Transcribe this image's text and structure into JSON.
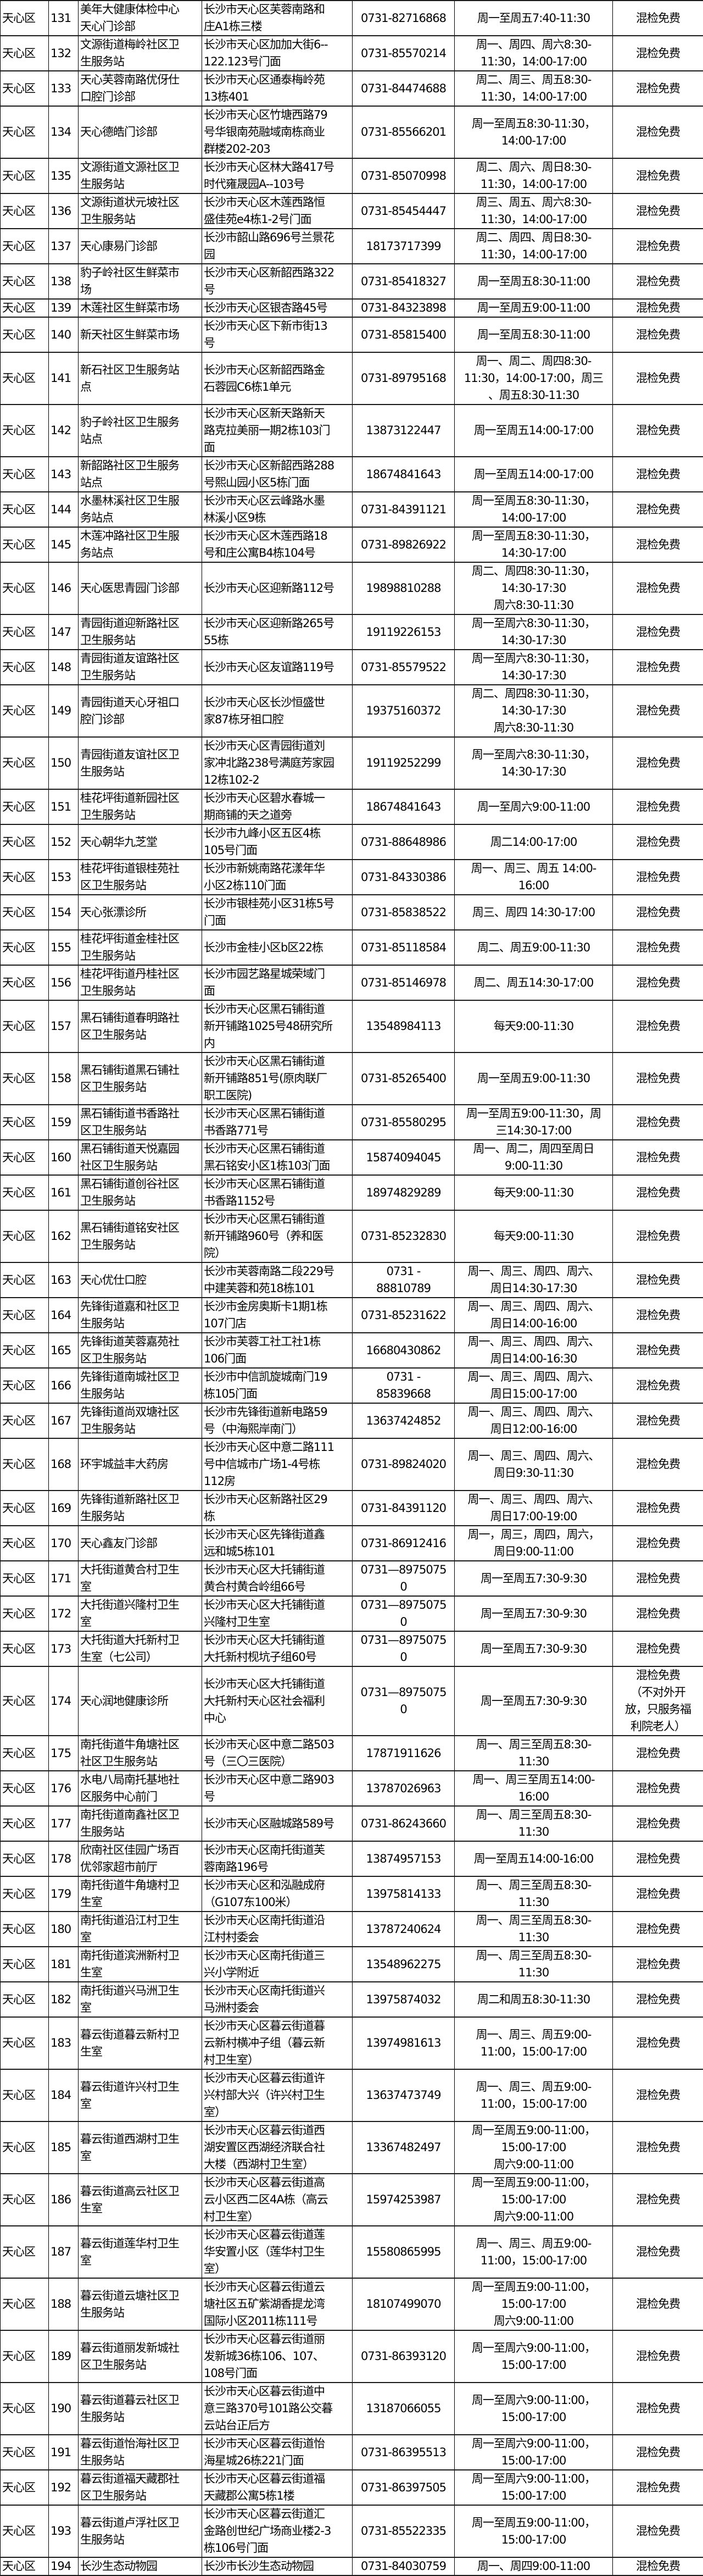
{
  "rows": [
    {
      "district": "天心区",
      "no": "131",
      "name": "美年大健康体检中心\n天心门诊部",
      "address": "长沙市天心区芙蓉南路和\n庄A1栋三楼",
      "phone": "0731-82716868",
      "hours": "周一至周五7:40-11:30",
      "test": "混检免费"
    },
    {
      "district": "天心区",
      "no": "132",
      "name": "文源街道梅岭社区卫\n生服务站",
      "address": "长沙市天心区加加大街6--\n122.123号门面",
      "phone": "0731-85570214",
      "hours": "周一、周四、周六8:30-\n11:30，14:00-17:00",
      "test": "混检免费"
    },
    {
      "district": "天心区",
      "no": "133",
      "name": "天心芙蓉南路优伢仕\n口腔门诊部",
      "address": "长沙市天心区通泰梅岭苑\n13栋401",
      "phone": "0731-84474688",
      "hours": "周二、周三、周五8:30-\n11:30，14:00-17:00",
      "test": "混检免费"
    },
    {
      "district": "天心区",
      "no": "134",
      "name": "天心德皓门诊部",
      "address": "长沙市天心区竹塘西路79\n号华银南苑融域南栋商业\n群楼202-203",
      "phone": "0731-85566201",
      "hours": "周一至周五8:30-11:30，\n14:00-17:00",
      "test": "混检免费"
    },
    {
      "district": "天心区",
      "no": "135",
      "name": "文源街道文源社区卫\n生服务站",
      "address": "长沙市天心区林大路417号\n时代雍晟园A--103号",
      "phone": "0731-85070998",
      "hours": "周二、周六、周日8:30-\n11:30，14:00-17:00",
      "test": "混检免费"
    },
    {
      "district": "天心区",
      "no": "136",
      "name": "文源街道状元坡社区\n卫生服务站",
      "address": "长沙市天心区木莲西路恒\n盛佳苑e4栋1-2号门面",
      "phone": "0731-85454447",
      "hours": "周三、周五、周六8:30-\n11:30，14:00-17:00",
      "test": "混检免费"
    },
    {
      "district": "天心区",
      "no": "137",
      "name": "天心康易门诊部",
      "address": "长沙市韶山路696号兰景花\n园",
      "phone": "18173717399",
      "hours": "周二、周四、周日8:30-\n11:30，14:00-17:00",
      "test": "混检免费"
    },
    {
      "district": "天心区",
      "no": "138",
      "name": "豹子岭社区生鲜菜市\n场",
      "address": "长沙市天心区新韶西路322\n号",
      "phone": "0731-85418327",
      "hours": "周一至周五8:30-11:00",
      "test": "混检免费"
    },
    {
      "district": "天心区",
      "no": "139",
      "name": "木莲社区生鲜菜市场",
      "address": "长沙市天心区银杏路45号",
      "phone": "0731-84323898",
      "hours": "周一至周五9:00-11:00",
      "test": "混检免费"
    },
    {
      "district": "天心区",
      "no": "140",
      "name": "新天社区生鲜菜市场",
      "address": "长沙市天心区下新市街13\n号",
      "phone": "0731-85815400",
      "hours": "周一至周五8:30-11:00",
      "test": "混检免费"
    },
    {
      "district": "天心区",
      "no": "141",
      "name": "新石社区卫生服务站\n点",
      "address": "长沙市天心区新韶西路金\n石蓉园C6栋1单元",
      "phone": "0731-89795168",
      "hours": "周一、周二、周四8:30-\n11:30，14:00-17:00，周三\n、周五8:30-11:30",
      "test": "混检免费"
    },
    {
      "district": "天心区",
      "no": "142",
      "name": "豹子岭社区卫生服务\n站点",
      "address": "长沙市天心区新天路新天\n路克拉美丽一期2栋103门\n面",
      "phone": "13873122447",
      "hours": "周一至周五14:00-17:00",
      "test": "混检免费"
    },
    {
      "district": "天心区",
      "no": "143",
      "name": "新韶路社区卫生服务\n站点",
      "address": "长沙市天心区新韶西路288\n号熙山园小区5栋门面",
      "phone": "18674841643",
      "hours": "周一至周五14:00-17:00",
      "test": "混检免费"
    },
    {
      "district": "天心区",
      "no": "144",
      "name": "水墨林溪社区卫生服\n务站点",
      "address": "长沙市天心区云峰路水墨\n林溪小区9栋",
      "phone": "0731-84391121",
      "hours": "周一至周五8:30-11:30，\n14:00-17:00",
      "test": "混检免费"
    },
    {
      "district": "天心区",
      "no": "145",
      "name": "木莲冲路社区卫生服\n务站点",
      "address": "长沙市天心区木莲西路18\n号和庄公寓B4栋104号",
      "phone": "0731-89826922",
      "hours": "周一至周五8:30-11:30，\n14:30-17:00",
      "test": "混检免费"
    },
    {
      "district": "天心区",
      "no": "146",
      "name": "天心医思青园门诊部",
      "address": "长沙市天心区迎新路112号",
      "phone": "19898810288",
      "hours": "周二、周四8:30-11:30，\n14:30-17:30\n周六8:30-11:30",
      "test": "混检免费"
    },
    {
      "district": "天心区",
      "no": "147",
      "name": "青园街道迎新路社区\n卫生服务站",
      "address": "长沙市天心区迎新路265号\n55栋",
      "phone": "19119226153",
      "hours": "周一至周六8:30-11:30，\n14:30-17:30",
      "test": "混检免费"
    },
    {
      "district": "天心区",
      "no": "148",
      "name": "青园街道友谊路社区\n卫生服务站",
      "address": "长沙市天心区友谊路119号",
      "phone": "0731-85579522",
      "hours": "周一至周六8:30-11:30，\n14:30-17:30",
      "test": "混检免费"
    },
    {
      "district": "天心区",
      "no": "149",
      "name": "青园街道天心牙祖口\n腔门诊部",
      "address": "长沙市天心区长沙恒盛世\n家87栋牙祖口腔",
      "phone": "19375160372",
      "hours": "周二、周四8:30-11:30，\n14:30-17:30\n周六8:30-11:30",
      "test": "混检免费"
    },
    {
      "district": "天心区",
      "no": "150",
      "name": "青园街道友谊社区卫\n生服务站",
      "address": "长沙市天心区青园街道刘\n家冲北路238号满庭芳家园\n12栋102-2",
      "phone": "19119252299",
      "hours": "周一至周六8:30-11:30，\n14:30-17:30",
      "test": "混检免费"
    },
    {
      "district": "天心区",
      "no": "151",
      "name": "桂花坪街道新园社区\n卫生服务站",
      "address": "长沙市天心区碧水春城一\n期商铺的天之道旁",
      "phone": "18674841643",
      "hours": "周一至周六9:00-11:00",
      "test": "混检免费"
    },
    {
      "district": "天心区",
      "no": "152",
      "name": "天心朝华九芝堂",
      "address": "长沙市九峰小区五区4栋\n105号门面",
      "phone": "0731-88648986",
      "hours": "周二14:00-17:00",
      "test": "混检免费"
    },
    {
      "district": "天心区",
      "no": "153",
      "name": "桂花坪街道银桂苑社\n区卫生服务站",
      "address": "长沙市新姚南路花漾年华\n小区2栋110门面",
      "phone": "0731-84330386",
      "hours": "周一、周三、周五 14:00-\n16:00",
      "test": "混检免费"
    },
    {
      "district": "天心区",
      "no": "154",
      "name": "天心张漂诊所",
      "address": "长沙市银桂苑小区31栋5号\n门面",
      "phone": "0731-85838522",
      "hours": "周三、周四 14:30-17:00",
      "test": "混检免费"
    },
    {
      "district": "天心区",
      "no": "155",
      "name": "桂花坪街道金桂社区\n卫生服务站",
      "address": "长沙市金桂小区b区22栋",
      "phone": "0731-85118584",
      "hours": "周二、周五9:00-11:30",
      "test": "混检免费"
    },
    {
      "district": "天心区",
      "no": "156",
      "name": "桂花坪街道丹桂社区\n卫生服务站",
      "address": "长沙市园艺路星城荣域门\n面",
      "phone": "0731-85146978",
      "hours": "周二、周五14:30-17:00",
      "test": "混检免费"
    },
    {
      "district": "天心区",
      "no": "157",
      "name": "黑石铺街道春明路社\n区卫生服务站",
      "address": "长沙市天心区黑石铺街道\n新开铺路1025号48研究所\n内",
      "phone": "13548984113",
      "hours": "每天9:00-11:30",
      "test": "混检免费"
    },
    {
      "district": "天心区",
      "no": "158",
      "name": "黑石铺街道黑石铺社\n区卫生服务站",
      "address": "长沙市天心区黑石铺街道\n新开铺路851号(原肉联厂\n职工医院)",
      "phone": "0731-85265400",
      "hours": "周一至周五9:00-11:30",
      "test": "混检免费"
    },
    {
      "district": "天心区",
      "no": "159",
      "name": "黑石铺街道书香路社\n区卫生服务站",
      "address": "长沙市天心区黑石铺街道\n书香路771号",
      "phone": "0731-85580295",
      "hours": "周一至周五9:00-11:30，周\n三14:30-17:00",
      "test": "混检免费"
    },
    {
      "district": "天心区",
      "no": "160",
      "name": "黑石铺街道天悦嘉园\n社区卫生服务站",
      "address": "长沙市天心区黑石铺街道\n黑石铭安小区1栋103门面",
      "phone": "15874094045",
      "hours": "周一、周二，周四至周日\n9:00-11:30",
      "test": "混检免费"
    },
    {
      "district": "天心区",
      "no": "161",
      "name": "黑石铺街道创谷社区\n卫生服务站",
      "address": "长沙市天心区黑石铺街道\n书香路1152号",
      "phone": "18974829289",
      "hours": "每天9:00-11:30",
      "test": "混检免费"
    },
    {
      "district": "天心区",
      "no": "162",
      "name": "黑石铺街道铭安社区\n卫生服务站",
      "address": "长沙市天心区黑石铺街道\n新开铺路960号（养和医\n院）",
      "phone": "0731-85232830",
      "hours": "每天9:00-11:30",
      "test": "混检免费"
    },
    {
      "district": "天心区",
      "no": "163",
      "name": "天心优仕口腔",
      "address": "长沙市芙蓉南路二段229号\n中建芙蓉和苑18栋101",
      "phone": "0731 -\n88810789",
      "hours": "周一、周三、周四、周六、\n周日14:30-17:30",
      "test": "混检免费"
    },
    {
      "district": "天心区",
      "no": "164",
      "name": "先锋街道嘉和社区卫\n生服务站",
      "address": "长沙市金房奥斯卡1期1栋\n107门店",
      "phone": "0731-85231622",
      "hours": "周一、周三、周四、周六、\n周日14:00-16:00",
      "test": "混检免费"
    },
    {
      "district": "天心区",
      "no": "165",
      "name": "先锋街道芙蓉嘉苑社\n区卫生服务站",
      "address": "长沙市芙蓉工社工社1栋\n106门面",
      "phone": "16680430862",
      "hours": "周一、周三、周四、周六、\n周日14:00-16:30",
      "test": "混检免费"
    },
    {
      "district": "天心区",
      "no": "166",
      "name": "先锋街道南城社区卫\n生服务站",
      "address": "长沙市中信凯旋城南门19\n栋105门面",
      "phone": "0731 -\n85839668",
      "hours": "周一、周三、周四、周六、\n周日15:00-17:00",
      "test": "混检免费"
    },
    {
      "district": "天心区",
      "no": "167",
      "name": "先锋街道尚双塘社区\n卫生服务站",
      "address": "长沙市先锋街道新电路59\n号（中海熙岸南门）",
      "phone": "13637424852",
      "hours": "周一、周三、周四、周六、\n周日12:00-16:00",
      "test": "混检免费"
    },
    {
      "district": "天心区",
      "no": "168",
      "name": "环宇城益丰大药房",
      "address": "长沙市天心区中意二路111\n号中信城市广场1-4号栋\n112房",
      "phone": "0731-89824020",
      "hours": "周一、周三、周四、周六、\n周日9:30-11:30",
      "test": "混检免费"
    },
    {
      "district": "天心区",
      "no": "169",
      "name": "先锋街道新路社区卫\n生服务站",
      "address": "长沙市天心区新路社区29\n栋",
      "phone": "0731-84391120",
      "hours": "周一、周三、周四、周六、\n周日17:00-19:00",
      "test": "混检免费"
    },
    {
      "district": "天心区",
      "no": "170",
      "name": "天心鑫友门诊部",
      "address": "长沙市天心区先锋街道鑫\n远和城5栋101",
      "phone": "0731-86912416",
      "hours": "周一，周三，周四，周六，\n周日9:00-11:00",
      "test": "混检免费"
    },
    {
      "district": "天心区",
      "no": "171",
      "name": "大托街道黄合村卫生\n室",
      "address": "长沙市天心区大托铺街道\n黄合村黄合岭组66号",
      "phone": "0731—8975075\n0",
      "hours": "周一至周五7:30-9:30",
      "test": "混检免费"
    },
    {
      "district": "天心区",
      "no": "172",
      "name": "大托街道兴隆村卫生\n室",
      "address": "长沙市天心区大托铺街道\n兴隆村卫生室",
      "phone": "0731—8975075\n0",
      "hours": "周一至周五7:30-9:30",
      "test": "混检免费"
    },
    {
      "district": "天心区",
      "no": "173",
      "name": "大托街道大托新村卫\n生室（七公司）",
      "address": "长沙市天心区大托铺街道\n大托新村枧坑子组60号",
      "phone": "0731—8975075\n0",
      "hours": "周一至周五7:30-9:30",
      "test": "混检免费"
    },
    {
      "district": "天心区",
      "no": "174",
      "name": "天心润地健康诊所",
      "address": "长沙市天心区大托铺街道\n大托新村天心区社会福利\n中心",
      "phone": "0731—8975075\n0",
      "hours": "周一至周五7:30-9:30",
      "test": "混检免费\n（不对外开\n放，只服务福\n利院老人）"
    },
    {
      "district": "天心区",
      "no": "175",
      "name": "南托街道牛角塘社区\n社区卫生服务站",
      "address": "长沙市天心区中意二路503\n号（三〇三医院）",
      "phone": "17871911626",
      "hours": "周一、周三至周五8:30-\n11:30",
      "test": "混检免费"
    },
    {
      "district": "天心区",
      "no": "176",
      "name": "水电八局南托基地社\n区服务中心前门",
      "address": "长沙市天心区中意二路903\n号",
      "phone": "13787026963",
      "hours": "周一、周三至周五14:00-\n16:00",
      "test": "混检免费"
    },
    {
      "district": "天心区",
      "no": "177",
      "name": "南托街道南鑫社区卫\n生服务站",
      "address": "长沙市天心区融城路589号",
      "phone": "0731-86243660",
      "hours": "周一、周三至周五8:30-\n11:30",
      "test": "混检免费"
    },
    {
      "district": "天心区",
      "no": "178",
      "name": "欣南社区佳园广场百\n优邻家超市前厅",
      "address": "长沙市天心区南托街道芙\n蓉南路196号",
      "phone": "13874957153",
      "hours": "周一至周五14:00-16:00",
      "test": "混检免费"
    },
    {
      "district": "天心区",
      "no": "179",
      "name": "南托街道牛角塘村卫\n生室",
      "address": "长沙市天心区和泓融成府\n（G107东100米）",
      "phone": "13975814133",
      "hours": "周一、周三至周五8:30-\n11:30",
      "test": "混检免费"
    },
    {
      "district": "天心区",
      "no": "180",
      "name": "南托街道沿江村卫生\n室",
      "address": "长沙市天心区南托街道沿\n江村村委会",
      "phone": "13787240624",
      "hours": "周一、周三至周五8:30-\n11:30",
      "test": "混检免费"
    },
    {
      "district": "天心区",
      "no": "181",
      "name": "南托街道滨洲新村卫\n生室",
      "address": "长沙市天心区南托街道三\n兴小学附近",
      "phone": "13548962275",
      "hours": "周一、周三至周五8:30-\n11:30",
      "test": "混检免费"
    },
    {
      "district": "天心区",
      "no": "182",
      "name": "南托街道兴马洲卫生\n室",
      "address": "长沙市天心区南托街道兴\n马洲村委会",
      "phone": "13975874032",
      "hours": "周二和周五8:30-11:30",
      "test": "混检免费"
    },
    {
      "district": "天心区",
      "no": "183",
      "name": "暮云街道暮云新村卫\n生室",
      "address": "长沙市天心区暮云街道暮\n云新村横冲子组（暮云新\n村卫生室）",
      "phone": "13974981613",
      "hours": "周一、周三、周五9:00-\n11:00，15:00-17:00",
      "test": "混检免费"
    },
    {
      "district": "天心区",
      "no": "184",
      "name": "暮云街道许兴村卫生\n室",
      "address": "长沙市天心区暮云街道许\n兴村部大兴（许兴村卫生\n室）",
      "phone": "13637473749",
      "hours": "周一、周三、周五9:00-\n11:00，15:00-17:00",
      "test": "混检免费"
    },
    {
      "district": "天心区",
      "no": "185",
      "name": "暮云街道西湖村卫生\n室",
      "address": "长沙市天心区暮云街道西\n湖安置区西湖经济联合社\n大楼（西湖村卫生室）",
      "phone": "13367482497",
      "hours": "周一至周五9:00-11:00，\n15:00-17:00\n周六9:00-11:00",
      "test": "混检免费"
    },
    {
      "district": "天心区",
      "no": "186",
      "name": "暮云街道高云社区卫\n生室",
      "address": "长沙市天心区暮云街道高\n云小区西二区4A栋（高云\n村卫生室）",
      "phone": "15974253987",
      "hours": "周一至周五9:00-11:00，\n15:00-17:00\n周六9:00-11:00",
      "test": "混检免费"
    },
    {
      "district": "天心区",
      "no": "187",
      "name": "暮云街道莲华村卫生\n室",
      "address": "长沙市天心区暮云街道莲\n华安置小区（莲华村卫生\n室）",
      "phone": "15580865995",
      "hours": "周一、周三、周五9:00-\n11:00，15:00-17:00",
      "test": "混检免费"
    },
    {
      "district": "天心区",
      "no": "188",
      "name": "暮云街道云塘社区卫\n生服务站",
      "address": "长沙市天心区暮云街道云\n塘社区五矿紫湖香提龙湾\n国际小区2011栋111号",
      "phone": "18107499070",
      "hours": "周一至周五9:00-11:00，\n15:00-17:00\n周六9:00-11:00",
      "test": "混检免费"
    },
    {
      "district": "天心区",
      "no": "189",
      "name": "暮云街道丽发新城社\n区卫生服务站",
      "address": "长沙市天心区暮云街道丽\n发新城36栋106、107、\n108号门面",
      "phone": "0731-86393120",
      "hours": "周一至周六9:00-11:00，\n15:00-17:00",
      "test": "混检免费"
    },
    {
      "district": "天心区",
      "no": "190",
      "name": "暮云街道暮云社区卫\n生服务站",
      "address": "长沙市天心区暮云街道中\n意三路370号101路公交暮\n云站台正后方",
      "phone": "13187066055",
      "hours": "周一至周六9:00-11:00，\n15:00-17:00",
      "test": "混检免费"
    },
    {
      "district": "天心区",
      "no": "191",
      "name": "暮云街道怡海社区卫\n生服务站",
      "address": "长沙市天心区暮云街道怡\n海星城26栋221门面",
      "phone": "0731-86395513",
      "hours": "周一至周六9:00-11:00，\n15:00-17:00",
      "test": "混检免费"
    },
    {
      "district": "天心区",
      "no": "192",
      "name": "暮云街道福天藏郡社\n区卫生服务站",
      "address": "长沙市天心区暮云街道福\n天藏郡公寓5栋1楼",
      "phone": "0731-86397505",
      "hours": "周一至周六9:00-11:00，\n15:00-17:00",
      "test": "混检免费"
    },
    {
      "district": "天心区",
      "no": "193",
      "name": "暮云街道卢浮社区卫\n生服务站",
      "address": "长沙市天心区暮云街道汇\n金路创世纪广场商业楼2-3\n栋106号门面",
      "phone": "0731-85522335",
      "hours": "周一至周五9:00-11:00，\n15:00-17:00",
      "test": "混检免费"
    },
    {
      "district": "天心区",
      "no": "194",
      "name": "长沙生态动物园",
      "address": "长沙市长沙生态动物园",
      "phone": "0731-84030759",
      "hours": "周一、周四9:00-11:00",
      "test": "混检免费"
    }
  ]
}
